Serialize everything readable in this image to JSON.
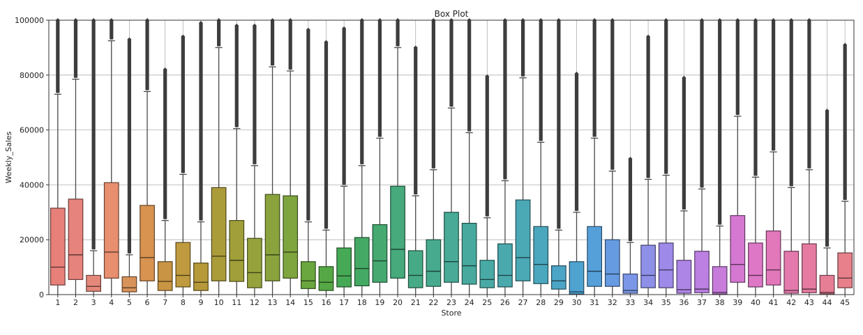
{
  "chart_data": {
    "type": "box",
    "title": "Box Plot",
    "xlabel": "Store",
    "ylabel": "Weekly_Sales",
    "ylim": [
      0,
      100000
    ],
    "y_ticks": [
      0,
      20000,
      40000,
      60000,
      80000,
      100000
    ],
    "y_tick_labels": [
      "0",
      "20000",
      "40000",
      "60000",
      "80000",
      "100000"
    ],
    "grid": true,
    "stores": [
      {
        "label": "1",
        "color": "#e8807a",
        "q1": 3500,
        "median": 10000,
        "q3": 31500,
        "whisker_high": 73000,
        "outlier_top": 100000
      },
      {
        "label": "2",
        "color": "#e6837c",
        "q1": 5500,
        "median": 14500,
        "q3": 34800,
        "whisker_high": 78500,
        "outlier_top": 100000
      },
      {
        "label": "3",
        "color": "#e4887a",
        "q1": 1200,
        "median": 3000,
        "q3": 7000,
        "whisker_high": 16000,
        "outlier_top": 100000
      },
      {
        "label": "4",
        "color": "#e78f6f",
        "q1": 6000,
        "median": 15500,
        "q3": 40800,
        "whisker_high": 92500,
        "outlier_top": 100000
      },
      {
        "label": "5",
        "color": "#d8935a",
        "q1": 1000,
        "median": 2500,
        "q3": 6500,
        "whisker_high": 14500,
        "outlier_top": 93000
      },
      {
        "label": "6",
        "color": "#d89350",
        "q1": 5000,
        "median": 13500,
        "q3": 32500,
        "whisker_high": 74000,
        "outlier_top": 100000
      },
      {
        "label": "7",
        "color": "#c99544",
        "q1": 1500,
        "median": 4800,
        "q3": 12000,
        "whisker_high": 27000,
        "outlier_top": 82000
      },
      {
        "label": "8",
        "color": "#bf9a3e",
        "q1": 2800,
        "median": 7000,
        "q3": 19000,
        "whisker_high": 43800,
        "outlier_top": 94000
      },
      {
        "label": "9",
        "color": "#b69a3a",
        "q1": 1500,
        "median": 4500,
        "q3": 11500,
        "whisker_high": 26500,
        "outlier_top": 99000
      },
      {
        "label": "10",
        "color": "#ab9c3a",
        "q1": 5000,
        "median": 14000,
        "q3": 39000,
        "whisker_high": 90000,
        "outlier_top": 100000
      },
      {
        "label": "11",
        "color": "#a09f3a",
        "q1": 4800,
        "median": 12500,
        "q3": 27000,
        "whisker_high": 60500,
        "outlier_top": 98000
      },
      {
        "label": "12",
        "color": "#96a23c",
        "q1": 2500,
        "median": 8000,
        "q3": 20500,
        "whisker_high": 47000,
        "outlier_top": 98000
      },
      {
        "label": "13",
        "color": "#8aa33c",
        "q1": 5000,
        "median": 14500,
        "q3": 36500,
        "whisker_high": 83000,
        "outlier_top": 100000
      },
      {
        "label": "14",
        "color": "#7ea53e",
        "q1": 6000,
        "median": 15500,
        "q3": 36000,
        "whisker_high": 81500,
        "outlier_top": 100000
      },
      {
        "label": "15",
        "color": "#6aa73e",
        "q1": 2200,
        "median": 5000,
        "q3": 12000,
        "whisker_high": 26500,
        "outlier_top": 96500
      },
      {
        "label": "16",
        "color": "#55a845",
        "q1": 1500,
        "median": 4500,
        "q3": 10200,
        "whisker_high": 23500,
        "outlier_top": 92000
      },
      {
        "label": "17",
        "color": "#46a956",
        "q1": 2800,
        "median": 6800,
        "q3": 17000,
        "whisker_high": 39500,
        "outlier_top": 97000
      },
      {
        "label": "18",
        "color": "#44a964",
        "q1": 3200,
        "median": 9500,
        "q3": 20800,
        "whisker_high": 47000,
        "outlier_top": 100000
      },
      {
        "label": "19",
        "color": "#45a970",
        "q1": 4500,
        "median": 12300,
        "q3": 25500,
        "whisker_high": 57000,
        "outlier_top": 100000
      },
      {
        "label": "20",
        "color": "#46aa7c",
        "q1": 6000,
        "median": 16500,
        "q3": 39500,
        "whisker_high": 90000,
        "outlier_top": 100000
      },
      {
        "label": "21",
        "color": "#46aa86",
        "q1": 2500,
        "median": 7000,
        "q3": 16000,
        "whisker_high": 36000,
        "outlier_top": 90000
      },
      {
        "label": "22",
        "color": "#47aa8f",
        "q1": 3000,
        "median": 8500,
        "q3": 20000,
        "whisker_high": 45500,
        "outlier_top": 100000
      },
      {
        "label": "23",
        "color": "#48aa97",
        "q1": 4500,
        "median": 12000,
        "q3": 30000,
        "whisker_high": 68000,
        "outlier_top": 100000
      },
      {
        "label": "24",
        "color": "#48aa9e",
        "q1": 3800,
        "median": 10500,
        "q3": 26000,
        "whisker_high": 59000,
        "outlier_top": 100000
      },
      {
        "label": "25",
        "color": "#49aaa5",
        "q1": 2500,
        "median": 5500,
        "q3": 12500,
        "whisker_high": 28000,
        "outlier_top": 79500
      },
      {
        "label": "26",
        "color": "#4aa9ad",
        "q1": 2800,
        "median": 7000,
        "q3": 18500,
        "whisker_high": 41500,
        "outlier_top": 100000
      },
      {
        "label": "27",
        "color": "#4ba8b5",
        "q1": 5000,
        "median": 13500,
        "q3": 34500,
        "whisker_high": 79000,
        "outlier_top": 100000
      },
      {
        "label": "28",
        "color": "#4ba7bd",
        "q1": 4000,
        "median": 11000,
        "q3": 24800,
        "whisker_high": 55500,
        "outlier_top": 100000
      },
      {
        "label": "29",
        "color": "#4ca5c6",
        "q1": 2000,
        "median": 5000,
        "q3": 10500,
        "whisker_high": 23500,
        "outlier_top": 100000
      },
      {
        "label": "30",
        "color": "#4fa3d1",
        "q1": 200,
        "median": 1000,
        "q3": 12000,
        "whisker_high": 30000,
        "outlier_top": 80500
      },
      {
        "label": "31",
        "color": "#56a0da",
        "q1": 3000,
        "median": 8500,
        "q3": 24800,
        "whisker_high": 57000,
        "outlier_top": 100000
      },
      {
        "label": "32",
        "color": "#669be1",
        "q1": 3000,
        "median": 7500,
        "q3": 20000,
        "whisker_high": 45000,
        "outlier_top": 100000
      },
      {
        "label": "33",
        "color": "#7b96e6",
        "q1": 500,
        "median": 1500,
        "q3": 7500,
        "whisker_high": 19000,
        "outlier_top": 49500
      },
      {
        "label": "34",
        "color": "#8e90e8",
        "q1": 2500,
        "median": 7000,
        "q3": 18000,
        "whisker_high": 42000,
        "outlier_top": 94000
      },
      {
        "label": "35",
        "color": "#9e8ae8",
        "q1": 2500,
        "median": 9000,
        "q3": 18800,
        "whisker_high": 43500,
        "outlier_top": 100000
      },
      {
        "label": "36",
        "color": "#ad85e6",
        "q1": 500,
        "median": 1800,
        "q3": 12500,
        "whisker_high": 30500,
        "outlier_top": 79000
      },
      {
        "label": "37",
        "color": "#bb80e2",
        "q1": 700,
        "median": 2000,
        "q3": 15800,
        "whisker_high": 38500,
        "outlier_top": 100000
      },
      {
        "label": "38",
        "color": "#c77cdc",
        "q1": 200,
        "median": 800,
        "q3": 10200,
        "whisker_high": 25000,
        "outlier_top": 100000
      },
      {
        "label": "39",
        "color": "#d478d2",
        "q1": 4500,
        "median": 11000,
        "q3": 28800,
        "whisker_high": 65000,
        "outlier_top": 100000
      },
      {
        "label": "40",
        "color": "#dd77c6",
        "q1": 2800,
        "median": 7000,
        "q3": 18800,
        "whisker_high": 42800,
        "outlier_top": 100000
      },
      {
        "label": "41",
        "color": "#e277ba",
        "q1": 3500,
        "median": 9000,
        "q3": 23200,
        "whisker_high": 52000,
        "outlier_top": 100000
      },
      {
        "label": "42",
        "color": "#e479ad",
        "q1": 500,
        "median": 1500,
        "q3": 15800,
        "whisker_high": 39000,
        "outlier_top": 100000
      },
      {
        "label": "43",
        "color": "#e57ba1",
        "q1": 700,
        "median": 2000,
        "q3": 18500,
        "whisker_high": 45500,
        "outlier_top": 100000
      },
      {
        "label": "44",
        "color": "#e67e96",
        "q1": 300,
        "median": 800,
        "q3": 7000,
        "whisker_high": 17000,
        "outlier_top": 67000
      },
      {
        "label": "45",
        "color": "#e7808b",
        "q1": 2500,
        "median": 6000,
        "q3": 15200,
        "whisker_high": 34000,
        "outlier_top": 91000
      }
    ]
  }
}
